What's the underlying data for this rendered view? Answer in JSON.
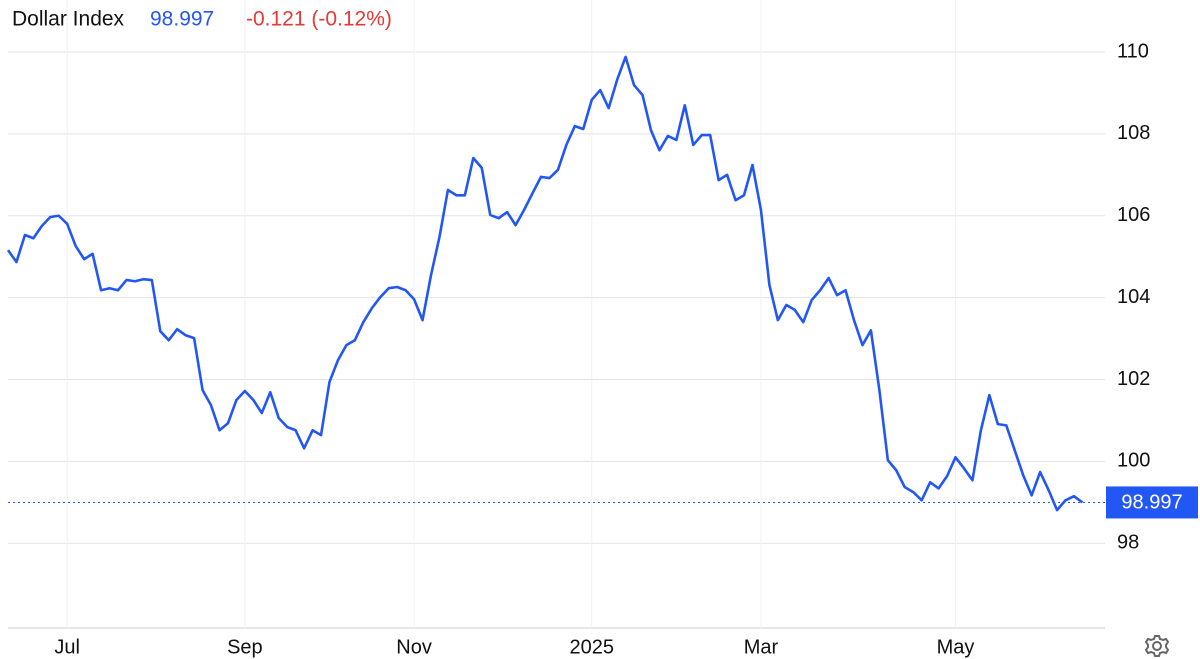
{
  "chart_data": {
    "type": "line",
    "title": "Dollar Index",
    "price": "98.997",
    "change": "-0.121 (-0.12%)",
    "last_value": 98.997,
    "categories": [
      null,
      null,
      null,
      null,
      null,
      null,
      null,
      "Jul",
      null,
      null,
      null,
      null,
      null,
      null,
      null,
      null,
      null,
      null,
      null,
      null,
      null,
      null,
      null,
      null,
      null,
      null,
      null,
      null,
      "Sep",
      null,
      null,
      null,
      null,
      null,
      null,
      null,
      null,
      null,
      null,
      null,
      null,
      null,
      null,
      null,
      null,
      null,
      null,
      null,
      "Nov",
      null,
      null,
      null,
      null,
      null,
      null,
      null,
      null,
      null,
      null,
      null,
      null,
      null,
      null,
      null,
      null,
      null,
      null,
      null,
      null,
      "2025",
      null,
      null,
      null,
      null,
      null,
      null,
      null,
      null,
      null,
      null,
      null,
      null,
      null,
      null,
      null,
      null,
      null,
      null,
      null,
      "Mar",
      null,
      null,
      null,
      null,
      null,
      null,
      null,
      null,
      null,
      null,
      null,
      null,
      null,
      null,
      null,
      null,
      null,
      null,
      null,
      null,
      null,
      null,
      "May",
      null,
      null,
      null,
      null,
      null,
      null,
      null,
      null,
      null,
      null,
      null,
      null,
      null,
      null,
      null
    ],
    "series": [
      {
        "name": "Dollar Index",
        "color": "#2357f5",
        "values": [
          105.16,
          104.87,
          105.53,
          105.45,
          105.75,
          105.97,
          106.0,
          105.8,
          105.26,
          104.94,
          105.07,
          104.18,
          104.23,
          104.18,
          104.43,
          104.4,
          104.45,
          104.43,
          103.18,
          102.96,
          103.23,
          103.08,
          103.01,
          101.74,
          101.37,
          100.76,
          100.93,
          101.5,
          101.72,
          101.5,
          101.18,
          101.69,
          101.06,
          100.84,
          100.76,
          100.32,
          100.76,
          100.64,
          101.94,
          102.47,
          102.84,
          102.96,
          103.4,
          103.74,
          104.01,
          104.23,
          104.26,
          104.18,
          103.96,
          103.45,
          104.55,
          105.48,
          106.63,
          106.5,
          106.5,
          107.41,
          107.17,
          106.02,
          105.94,
          106.09,
          105.77,
          106.14,
          106.55,
          106.95,
          106.92,
          107.12,
          107.73,
          108.19,
          108.12,
          108.83,
          109.07,
          108.63,
          109.32,
          109.88,
          109.19,
          108.95,
          108.09,
          107.6,
          107.95,
          107.85,
          108.7,
          107.73,
          107.97,
          107.97,
          106.87,
          107.0,
          106.38,
          106.5,
          107.24,
          106.14,
          104.31,
          103.45,
          103.82,
          103.7,
          103.4,
          103.94,
          104.18,
          104.48,
          104.06,
          104.18,
          103.45,
          102.84,
          103.2,
          101.74,
          100.03,
          99.78,
          99.37,
          99.25,
          99.05,
          99.49,
          99.34,
          99.64,
          100.1,
          99.83,
          99.54,
          100.76,
          101.62,
          100.91,
          100.88,
          100.27,
          99.66,
          99.17,
          99.74,
          99.3,
          98.81,
          99.05,
          99.15,
          98.997
        ]
      }
    ],
    "ylim": [
      95.93,
      111.27
    ],
    "yticks": [
      98,
      100,
      102,
      104,
      106,
      108,
      110
    ],
    "grid": true
  }
}
